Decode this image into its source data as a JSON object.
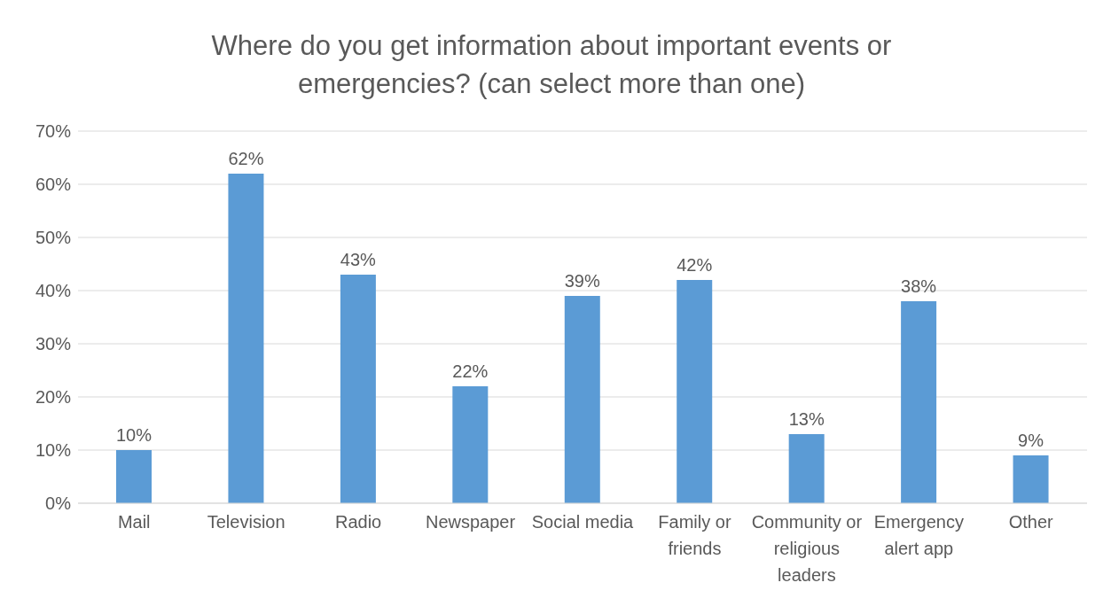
{
  "chart_data": {
    "type": "bar",
    "title": "Where do you get information about important events or emergencies? (can select more than one)",
    "categories": [
      "Mail",
      "Television",
      "Radio",
      "Newspaper",
      "Social media",
      "Family or friends",
      "Community or religious leaders",
      "Emergency alert app",
      "Other"
    ],
    "values": [
      10,
      62,
      43,
      22,
      39,
      42,
      13,
      38,
      9
    ],
    "value_labels": [
      "10%",
      "62%",
      "43%",
      "22%",
      "39%",
      "42%",
      "13%",
      "38%",
      "9%"
    ],
    "color": "#5b9bd5",
    "ylim": [
      0,
      70
    ],
    "yticks": [
      {
        "value": 0,
        "label": "0%"
      },
      {
        "value": 10,
        "label": "10%"
      },
      {
        "value": 20,
        "label": "20%"
      },
      {
        "value": 30,
        "label": "30%"
      },
      {
        "value": 40,
        "label": "40%"
      },
      {
        "value": 50,
        "label": "50%"
      },
      {
        "value": 60,
        "label": "60%"
      },
      {
        "value": 70,
        "label": "70%"
      }
    ],
    "grid": "y"
  }
}
